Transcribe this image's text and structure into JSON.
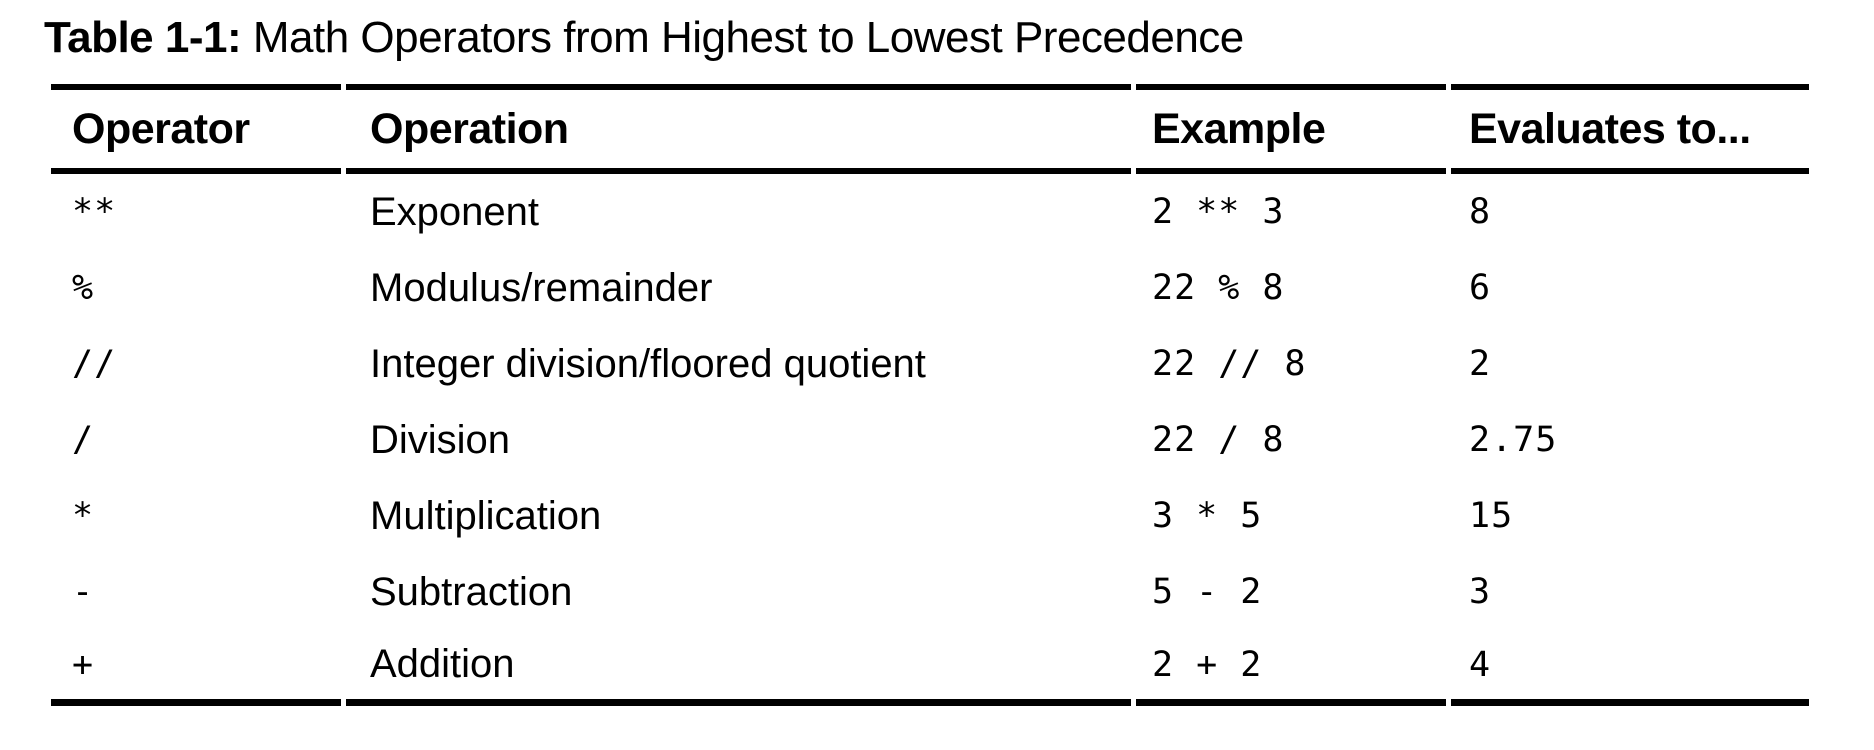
{
  "table": {
    "caption": {
      "prefix": "Table 1-1:",
      "text": " Math Operators from Highest to Lowest Precedence"
    },
    "columns": {
      "operator": "Operator",
      "operation": "Operation",
      "example": "Example",
      "evaluates_to": "Evaluates to..."
    },
    "rows": [
      {
        "operator": "**",
        "operation": "Exponent",
        "example": "2 ** 3",
        "evaluates_to": "8"
      },
      {
        "operator": "%",
        "operation": "Modulus/remainder",
        "example": "22 % 8",
        "evaluates_to": "6"
      },
      {
        "operator": "//",
        "operation": "Integer division/floored quotient",
        "example": "22 // 8",
        "evaluates_to": "2"
      },
      {
        "operator": "/",
        "operation": "Division",
        "example": "22 / 8",
        "evaluates_to": "2.75"
      },
      {
        "operator": "*",
        "operation": "Multiplication",
        "example": "3 * 5",
        "evaluates_to": "15"
      },
      {
        "operator": "-",
        "operation": "Subtraction",
        "example": "5 - 2",
        "evaluates_to": "3"
      },
      {
        "operator": "+",
        "operation": "Addition",
        "example": "2 + 2",
        "evaluates_to": "4"
      }
    ],
    "colors": {
      "text": "#000000",
      "background": "#ffffff",
      "rule": "#000000"
    }
  }
}
